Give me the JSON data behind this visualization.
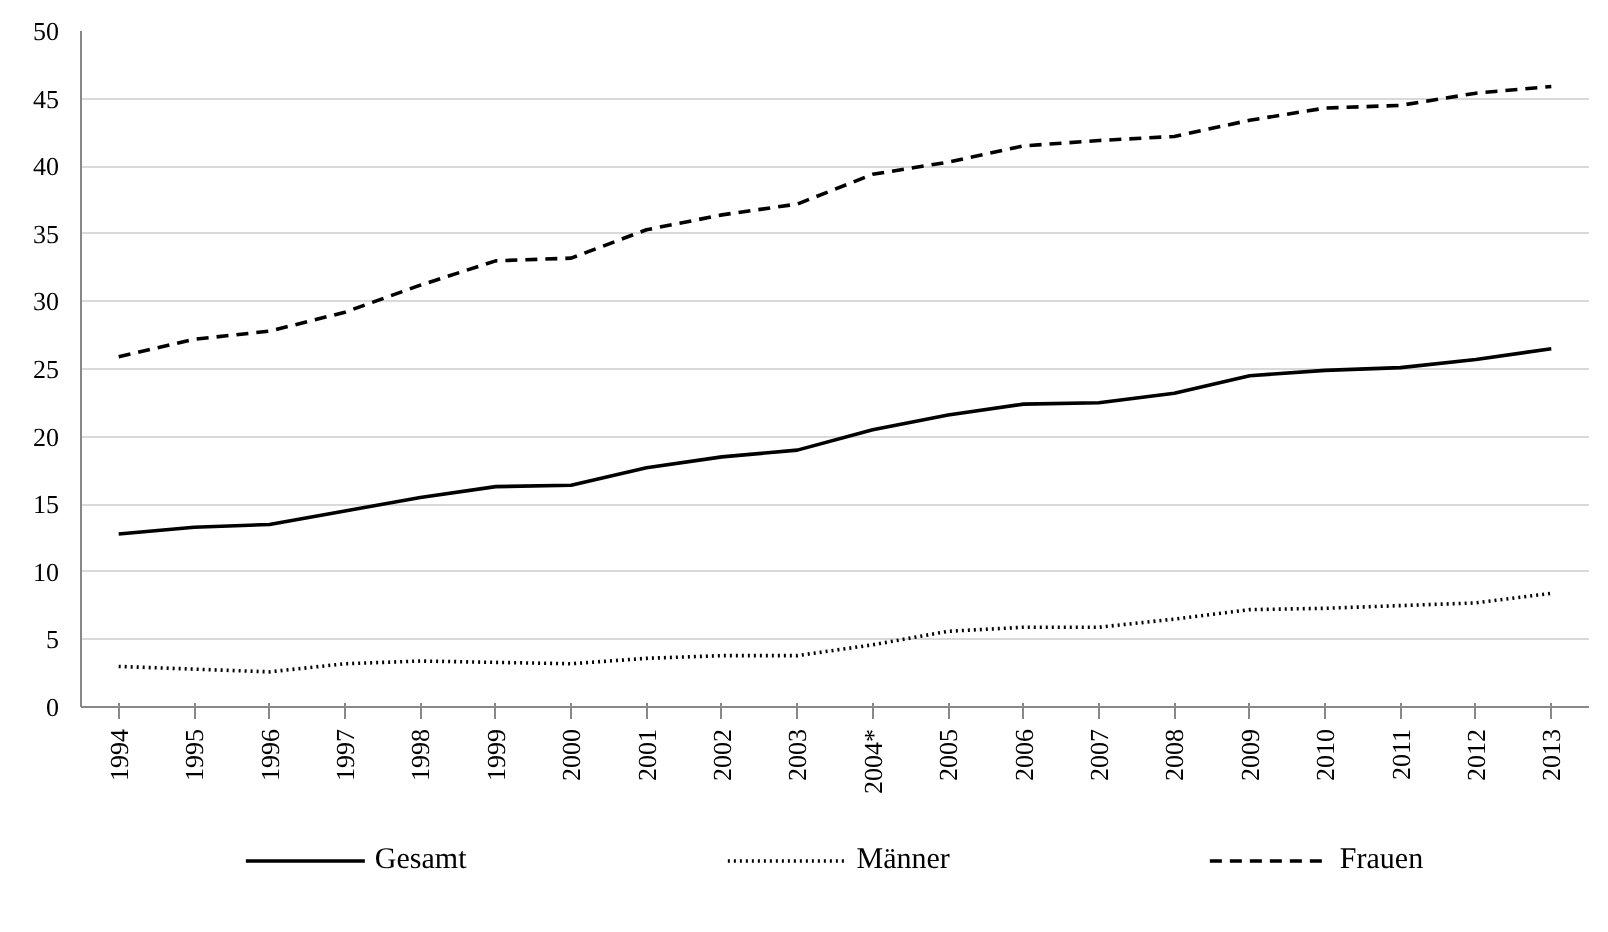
{
  "chart_data": {
    "type": "line",
    "categories": [
      "1994",
      "1995",
      "1996",
      "1997",
      "1998",
      "1999",
      "2000",
      "2001",
      "2002",
      "2003",
      "2004*",
      "2005",
      "2006",
      "2007",
      "2008",
      "2009",
      "2010",
      "2011",
      "2012",
      "2013"
    ],
    "series": [
      {
        "name": "Gesamt",
        "color": "#000000",
        "line_style": "solid",
        "values": [
          12.8,
          13.3,
          13.5,
          14.5,
          15.5,
          16.3,
          16.4,
          17.7,
          18.5,
          19.0,
          20.5,
          21.6,
          22.4,
          22.5,
          23.2,
          24.5,
          24.9,
          25.1,
          25.7,
          26.5
        ]
      },
      {
        "name": "Männer",
        "color": "#000000",
        "line_style": "dotted",
        "values": [
          3.0,
          2.8,
          2.6,
          3.2,
          3.4,
          3.3,
          3.2,
          3.6,
          3.8,
          3.8,
          4.6,
          5.6,
          5.9,
          5.9,
          6.5,
          7.2,
          7.3,
          7.5,
          7.7,
          8.4
        ]
      },
      {
        "name": "Frauen",
        "color": "#000000",
        "line_style": "dashed",
        "values": [
          25.9,
          27.2,
          27.8,
          29.2,
          31.2,
          33.0,
          33.2,
          35.3,
          36.4,
          37.2,
          39.4,
          40.3,
          41.5,
          41.9,
          42.2,
          43.4,
          44.3,
          44.5,
          45.4,
          45.9
        ]
      }
    ],
    "ylim": [
      0,
      50
    ],
    "yticks": [
      0,
      5,
      10,
      15,
      20,
      25,
      30,
      35,
      40,
      45,
      50
    ],
    "grid": "y",
    "legend": "bottom",
    "marker": "none"
  }
}
